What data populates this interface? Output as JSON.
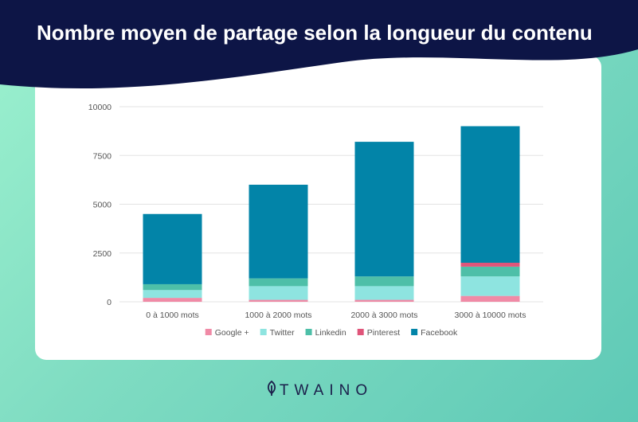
{
  "title": "Nombre moyen de partage selon la longueur du contenu",
  "brand": {
    "name": "TWAINO",
    "icon": "leaf-icon"
  },
  "colors": {
    "header": "#0d1546",
    "background": "#7fdcc2",
    "card": "#ffffff",
    "grid": "#e3e3e3"
  },
  "chart_data": {
    "type": "bar",
    "stacked": true,
    "categories": [
      "0 à 1000 mots",
      "1000 à 2000 mots",
      "2000 à 3000 mots",
      "3000 à 10000 mots"
    ],
    "ylim": [
      0,
      10000
    ],
    "yticks": [
      0,
      2500,
      5000,
      7500,
      10000
    ],
    "grid": true,
    "legend": "bottom",
    "series": [
      {
        "name": "Google +",
        "color": "#f08aa6",
        "values": [
          200,
          100,
          100,
          300
        ]
      },
      {
        "name": "Twitter",
        "color": "#8ee4e0",
        "values": [
          400,
          700,
          700,
          1000
        ]
      },
      {
        "name": "Linkedin",
        "color": "#4ebfa8",
        "values": [
          300,
          400,
          500,
          500
        ]
      },
      {
        "name": "Pinterest",
        "color": "#e0557a",
        "values": [
          0,
          0,
          0,
          200
        ]
      },
      {
        "name": "Facebook",
        "color": "#0284a8",
        "values": [
          3600,
          4800,
          6900,
          7000
        ]
      }
    ]
  }
}
